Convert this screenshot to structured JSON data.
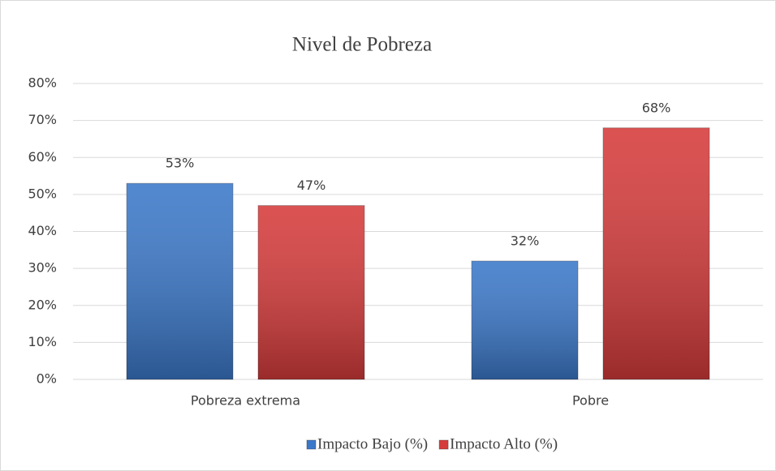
{
  "chart_data": {
    "type": "bar",
    "title": "Nivel de Pobreza",
    "categories": [
      "Pobreza extrema",
      "Pobre"
    ],
    "series": [
      {
        "name": "Impacto Bajo (%)",
        "color": "#3b78c9",
        "values": [
          53,
          32
        ],
        "value_labels": [
          "53%",
          "32%"
        ]
      },
      {
        "name": "Impacto Alto (%)",
        "color": "#d63b3b",
        "values": [
          47,
          68
        ],
        "value_labels": [
          "47%",
          "68%"
        ]
      }
    ],
    "ylim": [
      0,
      80
    ],
    "yticks": [
      {
        "value": 0,
        "label": "0%"
      },
      {
        "value": 10,
        "label": "10%"
      },
      {
        "value": 20,
        "label": "20%"
      },
      {
        "value": 30,
        "label": "30%"
      },
      {
        "value": 40,
        "label": "40%"
      },
      {
        "value": 50,
        "label": "50%"
      },
      {
        "value": 60,
        "label": "60%"
      },
      {
        "value": 70,
        "label": "70%"
      },
      {
        "value": 80,
        "label": "80%"
      }
    ],
    "grid": true,
    "legend": "bottom"
  }
}
